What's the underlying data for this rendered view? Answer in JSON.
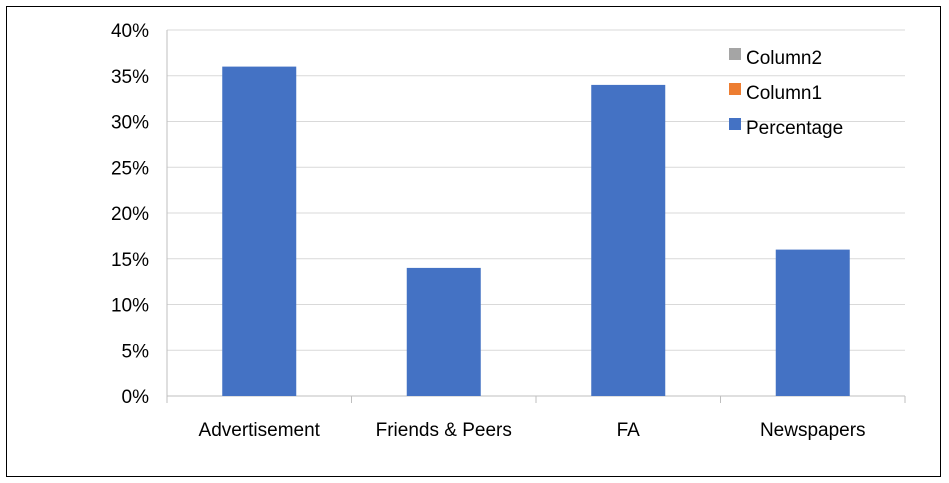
{
  "chart_data": {
    "type": "bar",
    "categories": [
      "Advertisement",
      "Friends & Peers",
      "FA",
      "Newspapers"
    ],
    "series": [
      {
        "name": "Column2",
        "color": "#a5a5a5",
        "values": [
          0,
          0,
          0,
          0
        ]
      },
      {
        "name": "Column1",
        "color": "#ed7d31",
        "values": [
          0,
          0,
          0,
          0
        ]
      },
      {
        "name": "Percentage",
        "color": "#4472c4",
        "values": [
          0.36,
          0.14,
          0.34,
          0.16
        ]
      }
    ],
    "ylim": [
      0,
      0.4
    ],
    "yticks": [
      0,
      0.05,
      0.1,
      0.15,
      0.2,
      0.25,
      0.3,
      0.35,
      0.4
    ],
    "ytick_labels": [
      "0%",
      "5%",
      "10%",
      "15%",
      "20%",
      "25%",
      "30%",
      "35%",
      "40%"
    ],
    "grid": true,
    "legend_position": "top-right"
  }
}
